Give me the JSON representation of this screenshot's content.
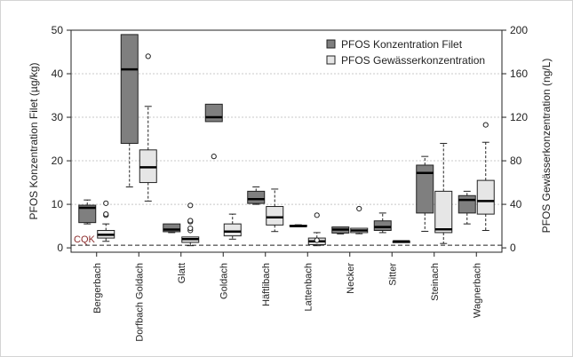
{
  "chart_data": {
    "type": "boxplot",
    "categories": [
      "Bergerbach",
      "Dorfbach Goldach",
      "Glatt",
      "Goldach",
      "Häftlibach",
      "Lattenbach",
      "Necker",
      "Sitter",
      "Steinach",
      "Wagnerbach"
    ],
    "y_left": {
      "label": "PFOS Konzentration Filet (µg/kg)",
      "ticks": [
        0,
        10,
        20,
        30,
        40,
        50
      ],
      "range": [
        -1,
        50
      ]
    },
    "y_right": {
      "label": "PFOS Gewässerkonzentration (ng/L)",
      "ticks": [
        0,
        40,
        80,
        120,
        160,
        200
      ],
      "range": [
        -4,
        200
      ]
    },
    "grid": true,
    "legend_position": "top-right",
    "reference_line": {
      "label": "CQK",
      "value_left": 0.6
    },
    "series": [
      {
        "name": "PFOS Konzentration Filet",
        "axis": "left",
        "color": "#7f7f7f",
        "boxes": [
          {
            "min": 5.5,
            "q1": 5.8,
            "median": 9.2,
            "q3": 9.8,
            "max": 11.0,
            "outliers": []
          },
          {
            "min": 14.0,
            "q1": 24.0,
            "median": 41.0,
            "q3": 49.0,
            "max": 49.0,
            "outliers": []
          },
          {
            "min": 3.5,
            "q1": 3.7,
            "median": 4.2,
            "q3": 5.5,
            "max": 5.5,
            "outliers": []
          },
          {
            "min": 29.0,
            "q1": 29.0,
            "median": 30.0,
            "q3": 33.0,
            "max": 33.0,
            "outliers": [
              21.0
            ]
          },
          {
            "min": 10.0,
            "q1": 10.2,
            "median": 11.2,
            "q3": 13.0,
            "max": 14.0,
            "outliers": []
          },
          {
            "min": 4.9,
            "q1": 4.9,
            "median": 5.0,
            "q3": 5.2,
            "max": 5.3,
            "outliers": []
          },
          {
            "min": 3.2,
            "q1": 3.4,
            "median": 4.2,
            "q3": 4.8,
            "max": 4.8,
            "outliers": []
          },
          {
            "min": 3.5,
            "q1": 4.0,
            "median": 4.8,
            "q3": 6.2,
            "max": 8.0,
            "outliers": []
          },
          {
            "min": 3.8,
            "q1": 8.0,
            "median": 17.2,
            "q3": 19.0,
            "max": 21.0,
            "outliers": []
          },
          {
            "min": 5.5,
            "q1": 8.0,
            "median": 11.0,
            "q3": 12.0,
            "max": 13.0,
            "outliers": []
          }
        ]
      },
      {
        "name": "PFOS Gewässerkonzentration",
        "axis": "right",
        "color": "#e6e6e6",
        "boxes": [
          {
            "min": 6,
            "q1": 9,
            "median": 12,
            "q3": 16,
            "max": 22,
            "outliers": [
              30,
              31,
              41
            ]
          },
          {
            "min": 43,
            "q1": 60,
            "median": 74,
            "q3": 90,
            "max": 130,
            "outliers": [
              176
            ]
          },
          {
            "min": 2,
            "q1": 5,
            "median": 8,
            "q3": 10,
            "max": 10,
            "outliers": [
              16,
              18,
              24,
              25,
              39
            ]
          },
          {
            "min": 8,
            "q1": 11,
            "median": 15,
            "q3": 22,
            "max": 31,
            "outliers": []
          },
          {
            "min": 15,
            "q1": 21,
            "median": 28,
            "q3": 38,
            "max": 54,
            "outliers": []
          },
          {
            "min": 2,
            "q1": 3,
            "median": 6,
            "q3": 9,
            "max": 14,
            "outliers": [
              7,
              30
            ]
          },
          {
            "min": 13,
            "q1": 14,
            "median": 16,
            "q3": 18,
            "max": 18,
            "outliers": [
              36
            ]
          },
          {
            "min": 6,
            "q1": 6,
            "median": 6,
            "q3": 6,
            "max": 6,
            "outliers": []
          },
          {
            "min": 4,
            "q1": 14,
            "median": 17,
            "q3": 52,
            "max": 96,
            "outliers": []
          },
          {
            "min": 16,
            "q1": 31,
            "median": 43,
            "q3": 62,
            "max": 97,
            "outliers": [
              113
            ]
          }
        ]
      }
    ]
  }
}
